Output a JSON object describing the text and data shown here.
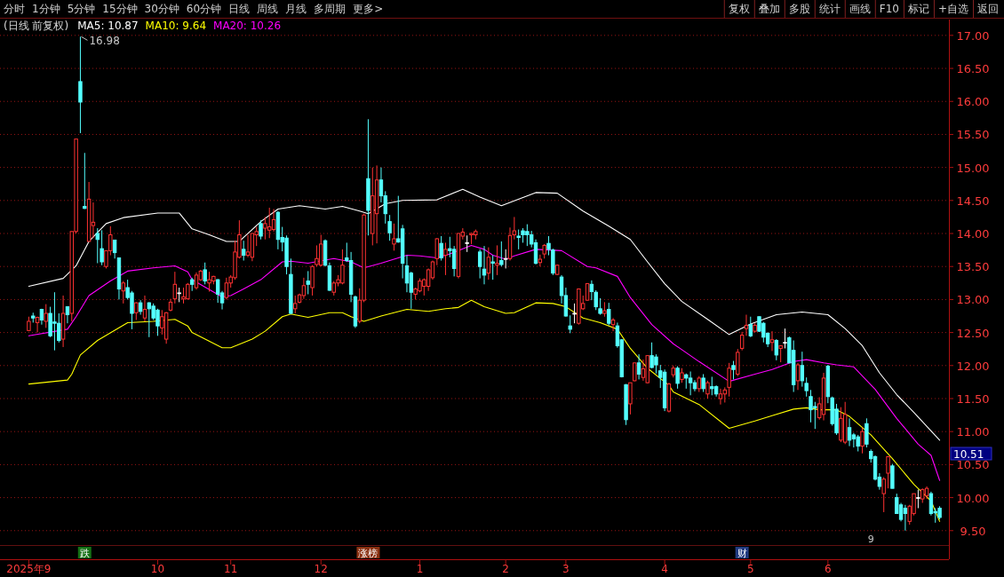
{
  "chart_data": {
    "type": "candlestick",
    "title": "(日线 前复权)",
    "legend": "top left",
    "grid": "y",
    "ylim": [
      9.47,
      17.24
    ],
    "yticks": [
      {
        "value": 9.5,
        "label": "9.50"
      },
      {
        "value": 10,
        "label": "10.00"
      },
      {
        "value": 10.5,
        "label": "10.50"
      },
      {
        "value": 11,
        "label": "11.00"
      },
      {
        "value": 11.5,
        "label": "11.50"
      },
      {
        "value": 12,
        "label": "12.00"
      },
      {
        "value": 12.5,
        "label": "12.50"
      },
      {
        "value": 13,
        "label": "13.00"
      },
      {
        "value": 13.5,
        "label": "13.50"
      },
      {
        "value": 14,
        "label": "14.00"
      },
      {
        "value": 14.5,
        "label": "14.50"
      },
      {
        "value": 15,
        "label": "15.00"
      },
      {
        "value": 15.5,
        "label": "15.50"
      },
      {
        "value": 16,
        "label": "16.00"
      },
      {
        "value": 16.5,
        "label": "16.50"
      },
      {
        "value": 17,
        "label": "17.00"
      }
    ],
    "colors": [
      "#ff3232",
      "#54ffff",
      "#ff3232",
      "#54ffff",
      "#ff3232",
      "#54ffff",
      "#54ffff",
      "#54ffff",
      "#ff3232",
      "#54ffff",
      "#ff3232",
      "#ff3232",
      "#54ffff",
      "#54ffff",
      "#ff3232",
      "#ff3232",
      "#54ffff",
      "#54ffff",
      "#ff3232",
      "#ff3232",
      "#54ffff",
      "#54ffff",
      "#ff3232",
      "#54ffff",
      "#54ffff",
      "#ff3232",
      "#54ffff",
      "#ff3232",
      "#54ffff",
      "#54ffff",
      "#54ffff",
      "#ff3232",
      "#ff3232",
      "#ff3232",
      "#ff3232",
      "#ffffff",
      "#ff3232",
      "#ff3232",
      "#54ffff",
      "#ff3232",
      "#ff3232",
      "#54ffff",
      "#ff3232",
      "#ff3232",
      "#54ffff",
      "#54ffff",
      "#ff3232",
      "#ff3232",
      "#ff3232",
      "#ff3232",
      "#54ffff",
      "#ff3232",
      "#ff3232",
      "#ff3232",
      "#54ffff",
      "#ff3232",
      "#ff3232",
      "#ff3232",
      "#54ffff",
      "#54ffff",
      "#54ffff",
      "#54ffff",
      "#ff3232",
      "#ff3232",
      "#ff3232",
      "#54ffff",
      "#ff3232",
      "#ff3232",
      "#ff3232",
      "#54ffff",
      "#54ffff",
      "#ff3232",
      "#ff3232",
      "#ff3232",
      "#54ffff",
      "#54ffff",
      "#54ffff",
      "#ff3232",
      "#ff3232",
      "#54ffff",
      "#ff3232",
      "#ff3232",
      "#54ffff",
      "#54ffff",
      "#54ffff",
      "#ff3232",
      "#54ffff",
      "#54ffff",
      "#54ffff",
      "#54ffff",
      "#ff3232",
      "#ff3232",
      "#ff3232",
      "#ff3232",
      "#ff3232",
      "#ff3232",
      "#54ffff",
      "#ff3232",
      "#54ffff",
      "#54ffff",
      "#ff3232",
      "#ff3232",
      "#ffffff",
      "#ff3232",
      "#ff3232",
      "#54ffff",
      "#54ffff",
      "#ff3232",
      "#54ffff",
      "#ff3232",
      "#54ffff",
      "#ffffff",
      "#ff3232",
      "#ff3232",
      "#54ffff",
      "#54ffff",
      "#54ffff",
      "#54ffff",
      "#54ffff",
      "#ff3232",
      "#ff3232",
      "#54ffff",
      "#54ffff",
      "#ff3232",
      "#54ffff",
      "#54ffff",
      "#54ffff",
      "#ffffff",
      "#ff3232",
      "#ff3232",
      "#ff3232",
      "#54ffff",
      "#54ffff",
      "#54ffff",
      "#ff3232",
      "#54ffff",
      "#ff3232",
      "#54ffff",
      "#54ffff",
      "#54ffff",
      "#ff3232",
      "#ff3232",
      "#54ffff",
      "#ff3232",
      "#ff3232",
      "#54ffff",
      "#54ffff",
      "#54ffff",
      "#54ffff",
      "#ff3232",
      "#ff3232",
      "#54ffff",
      "#ff3232",
      "#54ffff",
      "#54ffff",
      "#54ffff",
      "#ff3232",
      "#54ffff",
      "#ff3232",
      "#54ffff",
      "#54ffff",
      "#ff3232",
      "#ff3232",
      "#ff3232",
      "#54ffff",
      "#ff3232",
      "#ff3232",
      "#ff3232",
      "#54ffff",
      "#ff3232",
      "#54ffff",
      "#54ffff",
      "#54ffff",
      "#ff3232",
      "#54ffff",
      "#ff3232",
      "#ffffff",
      "#54ffff",
      "#54ffff",
      "#ff3232",
      "#54ffff",
      "#54ffff",
      "#54ffff",
      "#54ffff",
      "#ff3232",
      "#ff3232",
      "#54ffff",
      "#54ffff",
      "#54ffff",
      "#ff3232",
      "#ff3232",
      "#54ffff",
      "#54ffff",
      "#54ffff",
      "#ff3232",
      "#54ffff",
      "#54ffff",
      "#54ffff",
      "#54ffff",
      "#ff3232",
      "#ff3232",
      "#54ffff",
      "#54ffff",
      "#54ffff",
      "#54ffff",
      "#ff3232",
      "#ff3232",
      "#ffffff",
      "#ff3232",
      "#ff3232",
      "#54ffff",
      "#54ffff",
      "#54ffff"
    ],
    "categories": [
      "2025年9",
      null,
      null,
      null,
      null,
      null,
      null,
      null,
      null,
      null,
      null,
      null,
      null,
      null,
      null,
      null,
      null,
      null,
      null,
      null,
      null,
      null,
      null,
      null,
      null,
      null,
      null,
      null,
      null,
      null,
      "10",
      null,
      null,
      null,
      null,
      null,
      null,
      null,
      null,
      null,
      null,
      null,
      null,
      null,
      null,
      null,
      null,
      "11",
      null,
      null,
      null,
      null,
      null,
      null,
      null,
      null,
      null,
      null,
      null,
      null,
      null,
      null,
      null,
      null,
      null,
      null,
      null,
      null,
      "12",
      null,
      null,
      null,
      null,
      null,
      null,
      null,
      null,
      null,
      null,
      null,
      null,
      null,
      null,
      null,
      null,
      null,
      null,
      null,
      null,
      null,
      null,
      "1",
      null,
      null,
      null,
      null,
      null,
      null,
      null,
      null,
      null,
      null,
      null,
      null,
      null,
      null,
      null,
      null,
      null,
      null,
      null,
      "2",
      null,
      null,
      null,
      null,
      null,
      null,
      null,
      null,
      null,
      null,
      null,
      null,
      null,
      "3",
      null,
      null,
      null,
      null,
      null,
      null,
      null,
      null,
      null,
      null,
      null,
      null,
      null,
      null,
      null,
      null,
      null,
      null,
      null,
      null,
      null,
      null,
      "4",
      null,
      null,
      null,
      null,
      null,
      null,
      null,
      null,
      null,
      null,
      null,
      null,
      null,
      null,
      null,
      null,
      null,
      null,
      null,
      "5",
      null,
      null,
      null,
      null,
      null,
      null,
      null,
      null,
      null,
      null,
      null,
      null,
      null,
      null,
      null,
      null,
      null,
      "6",
      null,
      null,
      null,
      null,
      null,
      null,
      null,
      null,
      null,
      null,
      null,
      null,
      null,
      null,
      null,
      null,
      null,
      null,
      null,
      null,
      null,
      null,
      null,
      null,
      null,
      null
    ],
    "ohlc": [
      [
        12.53,
        12.74,
        12.52,
        12.67
      ],
      [
        12.75,
        12.8,
        12.65,
        12.72
      ],
      [
        12.65,
        12.74,
        12.5,
        12.73
      ],
      [
        12.85,
        12.86,
        12.62,
        12.69
      ],
      [
        12.67,
        12.93,
        12.57,
        12.79
      ],
      [
        12.79,
        12.89,
        12.43,
        12.45
      ],
      [
        12.66,
        13.11,
        12.23,
        12.64
      ],
      [
        12.64,
        12.79,
        12.35,
        12.38
      ],
      [
        12.4,
        13.06,
        12.28,
        12.79
      ],
      [
        12.89,
        12.9,
        12.64,
        12.77
      ],
      [
        12.79,
        14.03,
        12.67,
        14.03
      ],
      [
        14.03,
        15.43,
        14.0,
        15.43
      ],
      [
        16.3,
        16.98,
        15.52,
        15.99
      ],
      [
        14.41,
        15.22,
        14.37,
        14.38
      ],
      [
        13.88,
        14.78,
        13.88,
        14.52
      ],
      [
        14.12,
        14.47,
        13.93,
        14.17
      ],
      [
        14.0,
        14.08,
        13.55,
        13.91
      ],
      [
        13.77,
        14.05,
        13.52,
        13.57
      ],
      [
        13.5,
        13.74,
        13.47,
        13.74
      ],
      [
        13.74,
        14.11,
        13.67,
        13.98
      ],
      [
        13.9,
        13.9,
        13.62,
        13.71
      ],
      [
        13.63,
        13.63,
        13.0,
        13.16
      ],
      [
        13.13,
        13.28,
        12.94,
        13.25
      ],
      [
        13.18,
        13.3,
        13.0,
        13.03
      ],
      [
        13.1,
        13.13,
        12.55,
        12.79
      ],
      [
        12.8,
        12.96,
        12.69,
        12.95
      ],
      [
        12.95,
        12.99,
        12.77,
        12.82
      ],
      [
        12.72,
        13.06,
        12.67,
        12.85
      ],
      [
        12.95,
        12.96,
        12.43,
        12.86
      ],
      [
        12.9,
        12.94,
        12.69,
        12.72
      ],
      [
        12.84,
        12.86,
        12.45,
        12.6
      ],
      [
        12.57,
        12.84,
        12.47,
        12.74
      ],
      [
        12.4,
        12.81,
        12.33,
        12.8
      ],
      [
        12.84,
        13.01,
        12.82,
        12.96
      ],
      [
        13.01,
        13.42,
        12.94,
        13.23
      ],
      [
        13.1,
        13.18,
        12.96,
        13.1
      ],
      [
        13.01,
        13.18,
        12.94,
        13.04
      ],
      [
        13.01,
        13.25,
        13.0,
        13.23
      ],
      [
        13.3,
        13.33,
        13.13,
        13.23
      ],
      [
        13.18,
        13.41,
        13.15,
        13.37
      ],
      [
        13.3,
        13.45,
        13.28,
        13.43
      ],
      [
        13.45,
        13.56,
        13.23,
        13.28
      ],
      [
        13.25,
        13.42,
        13.12,
        13.3
      ],
      [
        13.28,
        13.36,
        13.23,
        13.35
      ],
      [
        13.3,
        13.31,
        12.95,
        13.08
      ],
      [
        13.1,
        13.13,
        12.85,
        12.95
      ],
      [
        13.03,
        13.33,
        13.0,
        13.25
      ],
      [
        13.25,
        13.37,
        13.18,
        13.34
      ],
      [
        13.33,
        13.89,
        13.3,
        13.72
      ],
      [
        13.64,
        14.2,
        13.62,
        13.98
      ],
      [
        13.76,
        13.89,
        13.59,
        13.67
      ],
      [
        13.67,
        13.98,
        13.64,
        13.72
      ],
      [
        13.64,
        14.0,
        13.58,
        14.0
      ],
      [
        13.98,
        14.1,
        13.81,
        14.03
      ],
      [
        14.15,
        14.2,
        13.91,
        13.96
      ],
      [
        14.08,
        14.25,
        13.91,
        14.15
      ],
      [
        14.05,
        14.39,
        13.93,
        14.1
      ],
      [
        14.06,
        14.37,
        14.03,
        14.21
      ],
      [
        14.32,
        14.34,
        13.76,
        13.91
      ],
      [
        13.94,
        14.1,
        13.73,
        13.87
      ],
      [
        13.93,
        13.97,
        13.38,
        13.5
      ],
      [
        13.38,
        13.62,
        12.78,
        12.79
      ],
      [
        12.86,
        13.06,
        12.79,
        12.94
      ],
      [
        12.96,
        13.09,
        12.94,
        13.07
      ],
      [
        13.06,
        13.33,
        13.01,
        13.21
      ],
      [
        13.28,
        13.43,
        13.08,
        13.23
      ],
      [
        13.18,
        13.52,
        13.06,
        13.5
      ],
      [
        13.53,
        13.82,
        13.5,
        13.62
      ],
      [
        13.52,
        13.98,
        13.5,
        13.84
      ],
      [
        13.89,
        13.91,
        13.5,
        13.52
      ],
      [
        13.51,
        13.56,
        13.13,
        13.14
      ],
      [
        13.11,
        13.28,
        13.06,
        13.25
      ],
      [
        13.25,
        13.37,
        13.2,
        13.3
      ],
      [
        13.25,
        13.76,
        13.23,
        13.52
      ],
      [
        13.63,
        13.86,
        13.57,
        13.59
      ],
      [
        13.59,
        13.72,
        12.96,
        13.08
      ],
      [
        13.04,
        13.06,
        12.57,
        12.6
      ],
      [
        12.67,
        13.17,
        12.64,
        12.99
      ],
      [
        12.99,
        14.3,
        12.96,
        14.28
      ],
      [
        14.83,
        15.73,
        13.97,
        14.35
      ],
      [
        14.0,
        15.0,
        13.82,
        14.57
      ],
      [
        14.3,
        15.03,
        13.85,
        14.81
      ],
      [
        14.81,
        15.0,
        14.47,
        14.57
      ],
      [
        14.57,
        14.64,
        14.15,
        14.3
      ],
      [
        14.18,
        14.28,
        13.89,
        14.01
      ],
      [
        13.84,
        14.15,
        13.74,
        13.92
      ],
      [
        13.92,
        14.57,
        13.86,
        13.87
      ],
      [
        14.07,
        14.13,
        13.32,
        13.55
      ],
      [
        13.51,
        13.67,
        13.11,
        13.25
      ],
      [
        13.4,
        13.42,
        12.86,
        13.11
      ],
      [
        13.08,
        13.18,
        13.0,
        13.16
      ],
      [
        13.13,
        13.32,
        13.11,
        13.28
      ],
      [
        13.2,
        13.32,
        13.06,
        13.3
      ],
      [
        13.2,
        13.47,
        13.13,
        13.45
      ],
      [
        13.33,
        13.59,
        13.3,
        13.57
      ],
      [
        13.62,
        13.93,
        13.52,
        13.92
      ],
      [
        13.85,
        13.96,
        13.59,
        13.63
      ],
      [
        13.67,
        13.86,
        13.37,
        13.76
      ],
      [
        13.77,
        13.95,
        13.64,
        13.74
      ],
      [
        13.76,
        13.81,
        13.35,
        13.47
      ],
      [
        13.35,
        14.0,
        13.32,
        14.0
      ],
      [
        13.96,
        14.08,
        13.91,
        14.02
      ],
      [
        13.86,
        13.97,
        13.72,
        13.86
      ],
      [
        13.98,
        14.01,
        13.84,
        14.0
      ],
      [
        13.98,
        14.06,
        13.91,
        14.03
      ],
      [
        13.72,
        13.76,
        13.32,
        13.5
      ],
      [
        13.46,
        13.81,
        13.23,
        13.37
      ],
      [
        13.4,
        13.79,
        13.3,
        13.64
      ],
      [
        13.57,
        13.67,
        13.3,
        13.55
      ],
      [
        13.52,
        13.82,
        13.37,
        13.55
      ],
      [
        13.59,
        13.88,
        13.5,
        13.53
      ],
      [
        13.62,
        13.76,
        13.47,
        13.62
      ],
      [
        13.62,
        14.09,
        13.59,
        13.97
      ],
      [
        13.98,
        14.25,
        13.91,
        14.04
      ],
      [
        13.96,
        14.06,
        13.76,
        13.94
      ],
      [
        14.04,
        14.08,
        13.86,
        13.98
      ],
      [
        14.03,
        14.14,
        13.81,
        13.98
      ],
      [
        13.98,
        14.04,
        13.79,
        13.84
      ],
      [
        13.86,
        13.91,
        13.53,
        13.55
      ],
      [
        13.56,
        13.68,
        13.5,
        13.61
      ],
      [
        13.69,
        13.84,
        13.62,
        13.82
      ],
      [
        13.85,
        13.96,
        13.67,
        13.76
      ],
      [
        13.75,
        13.77,
        13.37,
        13.4
      ],
      [
        13.38,
        13.53,
        13.37,
        13.52
      ],
      [
        13.34,
        13.37,
        12.94,
        13.06
      ],
      [
        13.06,
        13.18,
        12.74,
        12.75
      ],
      [
        12.6,
        12.76,
        12.49,
        12.55
      ],
      [
        12.79,
        12.94,
        12.64,
        12.79
      ],
      [
        12.64,
        13.16,
        12.62,
        13.16
      ],
      [
        12.86,
        13.06,
        12.84,
        12.94
      ],
      [
        12.99,
        13.25,
        12.98,
        13.24
      ],
      [
        13.23,
        13.29,
        12.99,
        13.12
      ],
      [
        13.11,
        13.14,
        12.84,
        12.89
      ],
      [
        12.86,
        13.02,
        12.77,
        12.79
      ],
      [
        12.79,
        12.96,
        12.74,
        12.83
      ],
      [
        12.85,
        12.95,
        12.61,
        12.64
      ],
      [
        12.62,
        12.72,
        12.52,
        12.69
      ],
      [
        12.6,
        12.65,
        12.27,
        12.3
      ],
      [
        12.39,
        12.4,
        11.82,
        11.83
      ],
      [
        11.71,
        11.72,
        11.1,
        11.18
      ],
      [
        11.42,
        11.74,
        11.26,
        11.74
      ],
      [
        11.77,
        12.04,
        11.76,
        12.04
      ],
      [
        12.04,
        12.17,
        11.79,
        11.87
      ],
      [
        11.82,
        12.09,
        11.77,
        11.95
      ],
      [
        11.74,
        12.15,
        11.73,
        12.15
      ],
      [
        12.15,
        12.35,
        11.96,
        11.97
      ],
      [
        12.13,
        12.17,
        11.88,
        12.01
      ],
      [
        11.92,
        12.01,
        11.66,
        11.82
      ],
      [
        11.9,
        11.94,
        11.31,
        11.36
      ],
      [
        11.31,
        11.74,
        11.29,
        11.72
      ],
      [
        11.86,
        12.0,
        11.82,
        11.96
      ],
      [
        11.96,
        11.99,
        11.65,
        11.73
      ],
      [
        11.79,
        11.96,
        11.74,
        11.89
      ],
      [
        11.86,
        11.88,
        11.65,
        11.81
      ],
      [
        11.81,
        11.91,
        11.55,
        11.74
      ],
      [
        11.74,
        11.78,
        11.61,
        11.65
      ],
      [
        11.65,
        11.84,
        11.6,
        11.81
      ],
      [
        11.81,
        11.87,
        11.6,
        11.65
      ],
      [
        11.57,
        11.77,
        11.5,
        11.74
      ],
      [
        11.68,
        11.83,
        11.55,
        11.65
      ],
      [
        11.68,
        11.7,
        11.53,
        11.57
      ],
      [
        11.5,
        11.65,
        11.41,
        11.57
      ],
      [
        11.57,
        11.67,
        11.44,
        11.63
      ],
      [
        11.67,
        12.04,
        11.53,
        11.96
      ],
      [
        12.0,
        12.07,
        11.79,
        11.94
      ],
      [
        11.87,
        12.25,
        11.84,
        12.2
      ],
      [
        12.26,
        12.51,
        12.23,
        12.46
      ],
      [
        12.56,
        12.77,
        12.45,
        12.61
      ],
      [
        12.62,
        12.74,
        12.43,
        12.45
      ],
      [
        12.52,
        12.64,
        12.5,
        12.61
      ],
      [
        12.74,
        12.74,
        12.51,
        12.52
      ],
      [
        12.64,
        12.66,
        12.35,
        12.43
      ],
      [
        12.49,
        12.5,
        12.28,
        12.33
      ],
      [
        12.35,
        12.52,
        12.22,
        12.39
      ],
      [
        12.38,
        12.4,
        12.08,
        12.16
      ],
      [
        12.26,
        12.3,
        12.05,
        12.3
      ],
      [
        12.35,
        12.56,
        12.26,
        12.35
      ],
      [
        12.42,
        12.44,
        12.04,
        12.04
      ],
      [
        12.23,
        12.38,
        11.6,
        11.71
      ],
      [
        11.77,
        12.04,
        11.63,
        12.01
      ],
      [
        12.0,
        12.21,
        11.68,
        11.77
      ],
      [
        11.73,
        11.82,
        11.53,
        11.62
      ],
      [
        11.53,
        11.63,
        11.14,
        11.33
      ],
      [
        11.38,
        11.45,
        11.04,
        11.36
      ],
      [
        11.21,
        11.52,
        11.18,
        11.42
      ],
      [
        11.26,
        11.89,
        11.17,
        11.81
      ],
      [
        11.99,
        12.01,
        11.43,
        11.53
      ],
      [
        11.51,
        11.53,
        11.09,
        11.12
      ],
      [
        11.34,
        11.42,
        10.95,
        10.98
      ],
      [
        10.87,
        11.37,
        10.84,
        11.2
      ],
      [
        10.84,
        11.45,
        10.81,
        11.26
      ],
      [
        11.06,
        11.2,
        10.78,
        10.87
      ],
      [
        10.95,
        10.98,
        10.76,
        10.89
      ],
      [
        10.92,
        10.95,
        10.7,
        10.78
      ],
      [
        10.78,
        11.06,
        10.67,
        11.0
      ],
      [
        11.12,
        11.2,
        10.76,
        10.81
      ],
      [
        10.7,
        10.73,
        10.53,
        10.59
      ],
      [
        10.62,
        10.64,
        10.26,
        10.28
      ],
      [
        10.31,
        10.37,
        10.12,
        10.17
      ],
      [
        10.06,
        10.31,
        9.78,
        10.28
      ],
      [
        10.37,
        10.62,
        10.14,
        10.62
      ],
      [
        10.48,
        10.51,
        10.14,
        10.14
      ],
      [
        10.0,
        10.06,
        9.76,
        9.76
      ],
      [
        9.89,
        9.92,
        9.64,
        9.67
      ],
      [
        9.84,
        9.89,
        9.5,
        9.76
      ],
      [
        9.64,
        9.89,
        9.59,
        9.87
      ],
      [
        9.76,
        10.06,
        9.73,
        10.06
      ],
      [
        10.0,
        10.12,
        9.84,
        10.0
      ],
      [
        9.98,
        10.14,
        9.92,
        10.12
      ],
      [
        10.03,
        10.17,
        9.98,
        10.14
      ],
      [
        10.06,
        10.09,
        9.73,
        9.76
      ],
      [
        9.79,
        9.84,
        9.62,
        9.77
      ],
      [
        9.84,
        9.87,
        9.67,
        9.7
      ]
    ],
    "series": [
      {
        "type": "line",
        "name": "MA5: 10.87",
        "color": "#ffffff",
        "values": [
          13.2,
          null,
          null,
          null,
          null,
          null,
          null,
          null,
          13.32,
          null,
          null,
          13.51,
          null,
          null,
          13.88,
          null,
          null,
          null,
          14.15,
          null,
          null,
          null,
          14.24,
          null,
          null,
          null,
          null,
          null,
          null,
          null,
          14.31,
          null,
          null,
          null,
          null,
          14.31,
          null,
          null,
          14.07,
          null,
          null,
          null,
          13.98,
          null,
          null,
          null,
          13.88,
          null,
          null,
          13.88,
          null,
          null,
          null,
          null,
          14.18,
          null,
          null,
          null,
          14.37,
          null,
          null,
          null,
          null,
          14.42,
          null,
          null,
          null,
          null,
          null,
          14.37,
          null,
          null,
          null,
          14.41,
          null,
          null,
          null,
          14.34,
          null,
          14.3,
          null,
          null,
          null,
          14.45,
          null,
          null,
          null,
          14.5,
          null,
          null,
          null,
          null,
          null,
          null,
          null,
          14.51,
          null,
          null,
          null,
          null,
          null,
          14.67,
          null,
          null,
          null,
          14.55,
          null,
          null,
          null,
          null,
          14.42,
          null,
          null,
          null,
          null,
          null,
          null,
          null,
          14.62,
          null,
          null,
          null,
          null,
          14.61,
          null,
          null,
          null,
          null,
          null,
          14.34,
          null,
          null,
          null,
          null,
          null,
          14.11,
          null,
          null,
          null,
          null,
          13.91,
          null,
          null,
          null,
          13.57,
          null,
          null,
          null,
          13.24,
          null,
          null,
          null,
          12.97,
          null,
          null,
          null,
          null,
          null,
          12.7,
          null,
          null,
          null,
          null,
          12.47,
          null,
          null,
          null,
          null,
          12.63,
          null,
          null,
          null,
          null,
          null,
          12.77,
          null,
          null,
          null,
          null,
          null,
          12.81,
          null,
          null,
          null,
          null,
          null,
          12.77,
          null,
          null,
          null,
          12.56,
          null,
          null,
          null,
          12.3,
          null,
          null,
          null,
          11.89,
          null,
          null,
          null,
          11.56,
          null,
          null,
          null,
          11.29,
          null,
          null,
          null,
          null,
          null,
          10.87
        ]
      },
      {
        "type": "line",
        "name": "MA10: 9.64",
        "color": "#ffff00",
        "values": [
          11.72,
          null,
          null,
          null,
          null,
          null,
          null,
          null,
          null,
          11.78,
          11.87,
          null,
          12.16,
          null,
          null,
          null,
          12.38,
          null,
          null,
          null,
          null,
          null,
          null,
          12.65,
          null,
          null,
          null,
          null,
          null,
          12.67,
          null,
          null,
          null,
          null,
          12.7,
          null,
          null,
          12.6,
          12.5,
          null,
          null,
          null,
          null,
          null,
          null,
          12.27,
          null,
          12.27,
          null,
          null,
          null,
          null,
          12.4,
          null,
          null,
          12.52,
          null,
          null,
          null,
          12.74,
          null,
          12.78,
          null,
          null,
          null,
          12.73,
          null,
          null,
          null,
          null,
          12.8,
          null,
          null,
          12.8,
          null,
          12.74,
          null,
          null,
          12.67,
          null,
          null,
          null,
          12.75,
          null,
          null,
          null,
          null,
          null,
          12.85,
          null,
          null,
          null,
          null,
          12.82,
          null,
          null,
          null,
          12.86,
          null,
          null,
          12.88,
          null,
          null,
          12.99,
          null,
          null,
          12.89,
          null,
          null,
          null,
          null,
          12.79,
          null,
          12.8,
          null,
          null,
          null,
          null,
          12.95,
          null,
          null,
          null,
          12.94,
          null,
          null,
          12.89,
          null,
          null,
          null,
          12.72,
          null,
          null,
          null,
          12.65,
          null,
          null,
          null,
          12.55,
          null,
          null,
          12.26,
          null,
          null,
          null,
          11.96,
          null,
          null,
          null,
          null,
          11.7,
          11.6,
          null,
          null,
          null,
          null,
          null,
          11.41,
          null,
          null,
          null,
          null,
          null,
          null,
          11.05,
          null,
          null,
          null,
          null,
          null,
          11.16,
          null,
          null,
          null,
          11.24,
          null,
          null,
          null,
          null,
          11.34,
          null,
          null,
          11.36,
          null,
          null,
          11.33,
          null,
          null,
          null,
          11.33,
          null,
          null,
          11.23,
          null,
          null,
          null,
          null,
          10.95,
          null,
          null,
          null,
          null,
          10.59,
          null,
          null,
          null,
          null,
          10.2,
          null,
          null,
          null,
          9.95,
          null,
          9.64
        ]
      },
      {
        "type": "line",
        "name": "MA20: 10.26",
        "color": "#ff00ff",
        "values": [
          12.45,
          null,
          null,
          null,
          null,
          null,
          null,
          null,
          null,
          12.55,
          null,
          12.74,
          null,
          null,
          13.06,
          null,
          null,
          null,
          null,
          13.28,
          null,
          null,
          null,
          13.43,
          null,
          null,
          null,
          null,
          null,
          13.48,
          null,
          null,
          null,
          null,
          13.51,
          null,
          null,
          13.42,
          13.3,
          null,
          null,
          null,
          null,
          null,
          null,
          13.04,
          null,
          13.06,
          null,
          null,
          13.16,
          null,
          null,
          null,
          13.3,
          null,
          null,
          null,
          null,
          13.57,
          null,
          13.58,
          null,
          null,
          null,
          13.55,
          null,
          null,
          null,
          null,
          null,
          13.62,
          null,
          null,
          null,
          13.57,
          null,
          null,
          13.48,
          null,
          null,
          null,
          13.55,
          null,
          null,
          null,
          null,
          null,
          13.67,
          null,
          null,
          13.66,
          null,
          null,
          null,
          13.63,
          null,
          null,
          13.69,
          null,
          null,
          null,
          null,
          13.82,
          null,
          null,
          13.76,
          null,
          13.67,
          null,
          null,
          13.61,
          null,
          13.66,
          null,
          null,
          null,
          null,
          13.76,
          null,
          null,
          null,
          null,
          null,
          13.74,
          null,
          null,
          null,
          null,
          null,
          13.5,
          null,
          13.48,
          null,
          null,
          null,
          null,
          13.35,
          null,
          null,
          13.03,
          null,
          null,
          null,
          null,
          12.62,
          null,
          null,
          null,
          null,
          12.33,
          null,
          null,
          null,
          null,
          null,
          12.06,
          null,
          null,
          null,
          null,
          null,
          null,
          11.76,
          null,
          null,
          null,
          null,
          null,
          11.87,
          null,
          null,
          null,
          11.94,
          null,
          null,
          null,
          null,
          12.06,
          null,
          null,
          12.09,
          null,
          null,
          null,
          12.04,
          null,
          null,
          12.01,
          null,
          null,
          null,
          11.98,
          null,
          null,
          null,
          null,
          11.64,
          null,
          null,
          null,
          null,
          11.2,
          null,
          null,
          null,
          null,
          10.81,
          null,
          null,
          10.64,
          null,
          10.26
        ]
      }
    ],
    "annotations": [
      "分时",
      "1分钟",
      "5分钟",
      "15分钟",
      "30分钟",
      "60分钟",
      "日线",
      "周线",
      "月线",
      "多周期",
      "更多>",
      "复权",
      "叠加",
      "多股",
      "统计",
      "画线",
      "F10",
      "标记",
      "+自选",
      "返回",
      "16.98",
      "10.51",
      "跌",
      "涨榜",
      "财",
      "9"
    ]
  }
}
